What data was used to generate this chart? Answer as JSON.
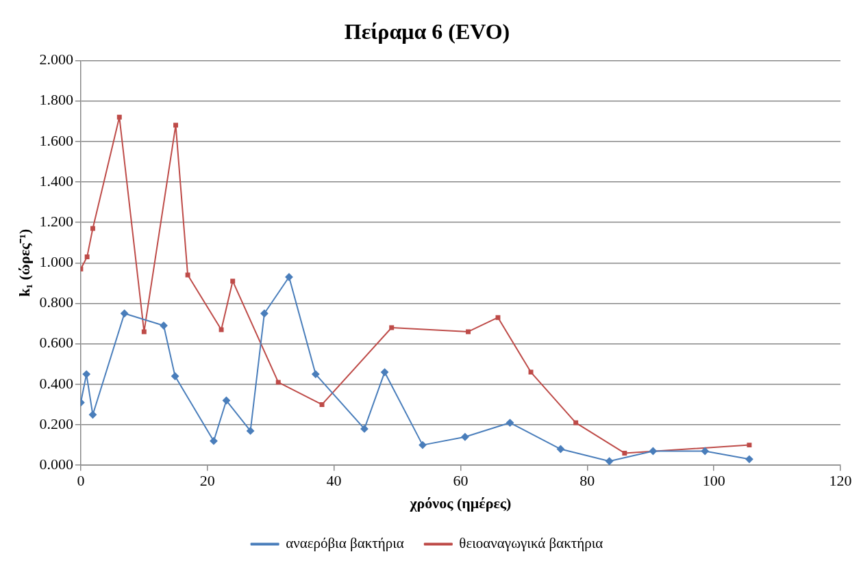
{
  "chart_data": {
    "type": "line",
    "title": "Πείραμα 6 (EVO)",
    "xlabel": "χρόνος (ημέρες)",
    "ylabel": "k₁ (ώρες⁻¹)",
    "xlim": [
      0,
      120
    ],
    "xticks": [
      0,
      20,
      40,
      60,
      80,
      100,
      120
    ],
    "ylim": [
      0,
      2
    ],
    "yticks": [
      {
        "value": 0,
        "label": "0.000"
      },
      {
        "value": 0.2,
        "label": "0.200"
      },
      {
        "value": 0.4,
        "label": "0.400"
      },
      {
        "value": 0.6,
        "label": "0.600"
      },
      {
        "value": 0.8,
        "label": "0.800"
      },
      {
        "value": 1,
        "label": "1.000"
      },
      {
        "value": 1.2,
        "label": "1.200"
      },
      {
        "value": 1.4,
        "label": "1.400"
      },
      {
        "value": 1.6,
        "label": "1.600"
      },
      {
        "value": 1.8,
        "label": "1.800"
      },
      {
        "value": 2,
        "label": "2.000"
      }
    ],
    "grid": "y",
    "legend": "bottom",
    "series": [
      {
        "name": "αναερόβια βακτήρια",
        "color": "#4a7ebb",
        "marker": "diamond",
        "x": [
          0,
          0.9,
          1.9,
          6.9,
          13.1,
          14.9,
          21,
          23,
          26.8,
          29,
          32.9,
          37.1,
          44.8,
          48,
          54,
          60.7,
          67.8,
          75.8,
          83.5,
          90.4,
          98.6,
          105.6
        ],
        "values": [
          0.31,
          0.45,
          0.25,
          0.75,
          0.69,
          0.44,
          0.12,
          0.32,
          0.17,
          0.75,
          0.93,
          0.45,
          0.18,
          0.46,
          0.1,
          0.14,
          0.21,
          0.08,
          0.02,
          0.07,
          0.07,
          0.03
        ]
      },
      {
        "name": "θειοαναγωγικά βακτήρια",
        "color": "#be4b48",
        "marker": "square",
        "x": [
          0,
          1,
          1.9,
          6.1,
          10,
          15,
          16.9,
          22.2,
          24,
          31.2,
          38.1,
          49.1,
          61.2,
          65.9,
          71.1,
          78.2,
          85.9,
          105.6
        ],
        "values": [
          0.97,
          1.03,
          1.17,
          1.72,
          0.66,
          1.68,
          0.94,
          0.67,
          0.91,
          0.41,
          0.3,
          0.68,
          0.66,
          0.73,
          0.46,
          0.21,
          0.06,
          0.1
        ]
      }
    ]
  }
}
